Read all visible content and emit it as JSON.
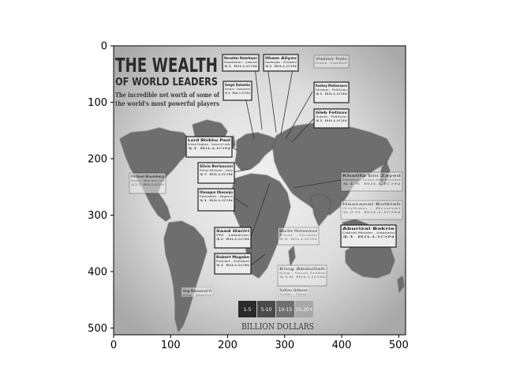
{
  "image": {
    "headline_line1": "THE WEALTH",
    "headline_line2": "OF WORLD LEADERS",
    "subtitle_line1": "The incredible net worth of some of",
    "subtitle_line2": "the world's most powerful players",
    "units_label": "BILLION DOLLARS",
    "legend_bins": [
      "1-5",
      "5-10",
      "10-15",
      "15-20+"
    ],
    "legend_colors": [
      "#2a2a2a",
      "#4a4a4a",
      "#707070",
      "#a8a8a8"
    ],
    "callouts": [
      {
        "name": "Nursultan Nazarbayev",
        "detail": "Kazakhstan - Cabinet",
        "value": "$1 BILLION"
      },
      {
        "name": "Ilham Aliyev",
        "detail": "Azerbaijan - President",
        "value": "$1 BILLION"
      },
      {
        "name": "Sergei Dutsenko",
        "detail": "Ukraine - Parliament",
        "value": "$1 BILLION"
      },
      {
        "name": "Vladimir Putin",
        "detail": "Russia - President",
        "value": ""
      },
      {
        "name": "Rodney Moldovanov",
        "detail": "Ukraine - Politician",
        "value": "$1 BILLION"
      },
      {
        "name": "Gleb Fetisov",
        "detail": "Russia - Politician",
        "value": "$1 BILLION"
      },
      {
        "name": "Lord Bhikhu Paul",
        "detail": "United Kingdom - House of Lords",
        "value": "$1 BILLION"
      },
      {
        "name": "Silvio Berlusconi",
        "detail": "Prime Minister - Italy",
        "value": "$7 BILLION"
      },
      {
        "name": "Olusegun Obasanjo",
        "detail": "President - Nigeria",
        "value": "$1 BILLION"
      },
      {
        "name": "Michael Bloomberg",
        "detail": "Mayor - New York City",
        "value": "$22 BILLION"
      },
      {
        "name": "Saad Hariri",
        "detail": "PM - Lebanon",
        "value": "$2 BILLION"
      },
      {
        "name": "Robert Mugabe",
        "detail": "President - Zimbabwe",
        "value": "$1 BILLION"
      },
      {
        "name": "Sheikh Mohammed",
        "detail": "Emir - Dubai",
        "value": "$4 BILLION"
      },
      {
        "name": "Khalifa bin Zayed",
        "detail": "President - United Arab Emirates",
        "value": "$15 BILLION"
      },
      {
        "name": "Hassanal Bolkiah",
        "detail": "Sultan - Brunei",
        "value": "$20 BILLION"
      },
      {
        "name": "Aburizal Bakrie",
        "detail": "Cabinet Minister - Indonesia",
        "value": "$1 BILLION"
      },
      {
        "name": "King Abdullah",
        "detail": "King - Saudi Arabia",
        "value": "$18 BILLION"
      },
      {
        "name": "Sultan Qaboos",
        "detail": "Sultan - Oman",
        "value": ""
      },
      {
        "name": "King Mohammed VI",
        "detail": "King - Morocco",
        "value": ""
      }
    ]
  },
  "axes": {
    "x_ticks": [
      "0",
      "100",
      "200",
      "300",
      "400",
      "500"
    ],
    "y_ticks": [
      "0",
      "100",
      "200",
      "300",
      "400",
      "500"
    ],
    "xlim": [
      0,
      512
    ],
    "ylim": [
      512,
      0
    ]
  }
}
